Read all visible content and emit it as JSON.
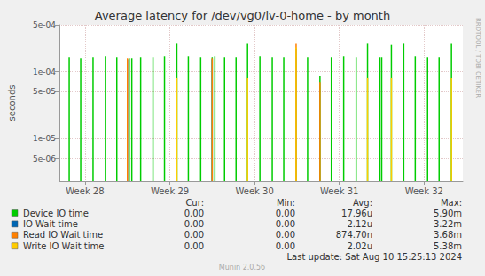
{
  "chart_data": {
    "type": "bar",
    "title": "Average latency for /dev/vg0/lv-0-home - by month",
    "y_label": "seconds",
    "log": "y",
    "grid": true,
    "xlim": [
      190.38,
      223.7
    ],
    "xticks": [
      {
        "value": 192.5,
        "label": "Week 28"
      },
      {
        "value": 199.5,
        "label": "Week 29"
      },
      {
        "value": 206.5,
        "label": "Week 30"
      },
      {
        "value": 213.5,
        "label": "Week 31"
      },
      {
        "value": 220.5,
        "label": "Week 32"
      }
    ],
    "ylim": [
      2.3e-06,
      0.0005
    ],
    "yticks": [
      {
        "value": 5e-06,
        "label": "5e-06"
      },
      {
        "value": 1e-05,
        "label": "1e-05"
      },
      {
        "value": 5e-05,
        "label": "5e-05"
      },
      {
        "value": 0.0001,
        "label": "1e-04"
      },
      {
        "value": 0.0005,
        "label": "5e-04"
      }
    ],
    "series": [
      {
        "name": "Device IO time",
        "color": "#00cc00",
        "x": [
          191.19,
          192.14,
          193.16,
          194.18,
          195.12,
          196.15,
          196.36,
          197.09,
          198.11,
          199.06,
          200.08,
          201.03,
          202.05,
          203.0,
          203.22,
          204.02,
          204.97,
          205.92,
          206.94,
          207.96,
          208.91,
          209.93,
          210.88,
          211.9,
          212.84,
          213.86,
          214.89,
          215.83,
          216.85,
          217.0,
          217.8,
          218.82,
          219.77,
          220.79,
          221.74,
          222.76
        ],
        "values": [
          0.000165,
          0.00016,
          0.000165,
          0.00017,
          0.000165,
          0.00016,
          0.00016,
          0.000165,
          0.000165,
          0.00017,
          0.00026,
          0.00017,
          0.000165,
          0.000165,
          0.00017,
          0.000165,
          0.000165,
          0.00026,
          0.00017,
          0.000165,
          0.000165,
          0.000165,
          0.000165,
          8.5e-05,
          0.000165,
          0.00017,
          0.000165,
          0.00026,
          0.000165,
          0.000165,
          0.00025,
          0.00026,
          0.00017,
          0.000165,
          0.000165,
          0.00026
        ]
      },
      {
        "name": "IO Wait time",
        "color": "#0066b3",
        "x": [
          196.0,
          203.0,
          209.93
        ],
        "values": [
          0.00015,
          0.00015,
          0.00022
        ]
      },
      {
        "name": "Read IO Wait time",
        "color": "#ff8000",
        "x": [
          196.0,
          203.0,
          209.93,
          211.9
        ],
        "values": [
          0.00016,
          0.00016,
          0.00026,
          7e-05
        ]
      },
      {
        "name": "Write IO Wait time",
        "color": "#ffcc00",
        "x": [
          200.08,
          205.92,
          209.93,
          215.83,
          217.8,
          222.76
        ],
        "values": [
          8e-05,
          8e-05,
          0.00023,
          8e-05,
          8e-05,
          8e-05
        ]
      }
    ],
    "legend_table": {
      "columns": [
        "Cur:",
        "Min:",
        "Avg:",
        "Max:"
      ],
      "rows": [
        [
          "0.00",
          "0.00",
          "17.96u",
          "5.90m"
        ],
        [
          "0.00",
          "0.00",
          "2.12u",
          "3.22m"
        ],
        [
          "0.00",
          "0.00",
          "874.70n",
          "3.68m"
        ],
        [
          "0.00",
          "0.00",
          "2.02u",
          "5.38m"
        ]
      ]
    },
    "last_update": "Last update: Sat Aug 10 15:25:13 2024",
    "footer": "Munin 2.0.56",
    "watermark": "RRDTOOL / TOBI OETIKER"
  }
}
